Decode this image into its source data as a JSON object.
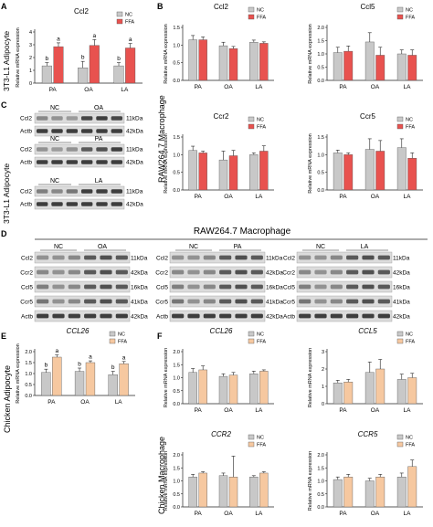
{
  "colors": {
    "nc": "#c8c8c8",
    "ffa": "#e8524f",
    "ffa_chicken": "#f6c8a0",
    "axis": "#222222",
    "blot_bg": "#dcdcdc",
    "band": "#222222"
  },
  "panels": {
    "A": "A",
    "B": "B",
    "C": "C",
    "D": "D",
    "E": "E",
    "F": "F"
  },
  "row_labels": {
    "adipocyte_3t3": "3T3-L1 Adipocyte",
    "raw_macrophage": "RAW264.7 Macrophage",
    "chicken_adipocyte": "Chicken Adipocyte",
    "chicken_macrophage": "Chicken Macrophage"
  },
  "blot_c": {
    "groups": [
      {
        "header": [
          "NC",
          "OA"
        ],
        "rows": [
          {
            "label": "Ccl2",
            "kda": "11kDa"
          },
          {
            "label": "Actb",
            "kda": "42kDa"
          }
        ]
      },
      {
        "header": [
          "NC",
          "PA"
        ],
        "rows": [
          {
            "label": "Ccl2",
            "kda": "11kDa"
          },
          {
            "label": "Actb",
            "kda": "42kDa"
          }
        ]
      },
      {
        "header": [
          "NC",
          "LA"
        ],
        "rows": [
          {
            "label": "Ccl2",
            "kda": "11kDa"
          },
          {
            "label": "Actb",
            "kda": "42kDa"
          }
        ]
      }
    ]
  },
  "blot_d": {
    "title": "RAW264.7 Macrophage",
    "groups": [
      {
        "header": [
          "NC",
          "OA"
        ]
      },
      {
        "header": [
          "NC",
          "PA"
        ]
      },
      {
        "header": [
          "NC",
          "LA"
        ]
      }
    ],
    "rows": [
      {
        "label": "Ccl2",
        "kda": "11kDa"
      },
      {
        "label": "Ccr2",
        "kda": "42kDa"
      },
      {
        "label": "Ccl5",
        "kda": "16kDa"
      },
      {
        "label": "Ccr5",
        "kda": "41kDa"
      },
      {
        "label": "Actb",
        "kda": "42kDa"
      }
    ]
  },
  "chart_data": [
    {
      "id": "A",
      "type": "bar",
      "title": "Ccl2",
      "title_italic": false,
      "ylabel": "Relative mRNA expression",
      "ylim": [
        0,
        4
      ],
      "yticks": [
        0,
        1,
        2,
        3,
        4
      ],
      "categories": [
        "PA",
        "OA",
        "LA"
      ],
      "series": [
        {
          "name": "NC",
          "values": [
            1.35,
            1.2,
            1.35
          ],
          "errors": [
            0.25,
            0.5,
            0.25
          ],
          "sig": [
            "b",
            "b",
            "b"
          ]
        },
        {
          "name": "FFA",
          "values": [
            2.85,
            2.95,
            2.75
          ],
          "errors": [
            0.3,
            0.45,
            0.35
          ],
          "sig": [
            "a",
            "a",
            "a"
          ]
        }
      ],
      "legend": "top-right"
    },
    {
      "id": "B1",
      "type": "bar",
      "title": "Ccl2",
      "title_italic": false,
      "ylabel": "Relative mRNA expression",
      "ylim": [
        0,
        1.5
      ],
      "yticks": [
        0.0,
        0.5,
        1.0,
        1.5
      ],
      "categories": [
        "PA",
        "OA",
        "LA"
      ],
      "series": [
        {
          "name": "NC",
          "values": [
            1.15,
            0.98,
            1.08
          ],
          "errors": [
            0.12,
            0.1,
            0.06
          ]
        },
        {
          "name": "FFA",
          "values": [
            1.15,
            0.9,
            1.05
          ],
          "errors": [
            0.08,
            0.06,
            0.04
          ]
        }
      ],
      "legend": "top-right"
    },
    {
      "id": "B2",
      "type": "bar",
      "title": "Ccl5",
      "title_italic": false,
      "ylabel": "Relative mRNA expression",
      "ylim": [
        0,
        2.0
      ],
      "yticks": [
        0.0,
        0.5,
        1.0,
        1.5,
        2.0
      ],
      "categories": [
        "PA",
        "OA",
        "LA"
      ],
      "series": [
        {
          "name": "NC",
          "values": [
            1.05,
            1.45,
            1.0
          ],
          "errors": [
            0.2,
            0.35,
            0.15
          ]
        },
        {
          "name": "FFA",
          "values": [
            1.1,
            0.95,
            0.95
          ],
          "errors": [
            0.2,
            0.3,
            0.2
          ]
        }
      ],
      "legend": "top-right"
    },
    {
      "id": "B3",
      "type": "bar",
      "title": "Ccr2",
      "title_italic": false,
      "ylabel": "Relative mRNA expression",
      "ylim": [
        0,
        1.5
      ],
      "yticks": [
        0.0,
        0.5,
        1.0,
        1.5
      ],
      "categories": [
        "PA",
        "OA",
        "LA"
      ],
      "series": [
        {
          "name": "NC",
          "values": [
            1.12,
            0.85,
            1.0
          ],
          "errors": [
            0.12,
            0.25,
            0.05
          ]
        },
        {
          "name": "FFA",
          "values": [
            1.05,
            0.97,
            1.1
          ],
          "errors": [
            0.05,
            0.15,
            0.15
          ]
        }
      ],
      "legend": "top-right"
    },
    {
      "id": "B4",
      "type": "bar",
      "title": "Ccr5",
      "title_italic": false,
      "ylabel": "Relative mRNA expression",
      "ylim": [
        0,
        1.5
      ],
      "yticks": [
        0.0,
        0.5,
        1.0,
        1.5
      ],
      "categories": [
        "PA",
        "OA",
        "LA"
      ],
      "series": [
        {
          "name": "NC",
          "values": [
            1.05,
            1.15,
            1.2
          ],
          "errors": [
            0.08,
            0.3,
            0.25
          ]
        },
        {
          "name": "FFA",
          "values": [
            1.0,
            1.1,
            0.9
          ],
          "errors": [
            0.05,
            0.3,
            0.15
          ]
        }
      ],
      "legend": "top-right"
    },
    {
      "id": "E",
      "type": "bar",
      "title": "CCL26",
      "title_italic": true,
      "ylabel": "Relative mRNA expression",
      "ylim": [
        0,
        2.0
      ],
      "yticks": [
        0.0,
        0.5,
        1.0,
        1.5,
        2.0
      ],
      "categories": [
        "PA",
        "OA",
        "LA"
      ],
      "series": [
        {
          "name": "NC",
          "values": [
            1.05,
            1.1,
            0.95
          ],
          "errors": [
            0.15,
            0.15,
            0.15
          ],
          "sig": [
            "b",
            "b",
            "b"
          ]
        },
        {
          "name": "FFA",
          "values": [
            1.75,
            1.5,
            1.45
          ],
          "errors": [
            0.1,
            0.08,
            0.1
          ],
          "sig": [
            "a",
            "a",
            "a"
          ]
        }
      ],
      "legend": "top-right"
    },
    {
      "id": "F1",
      "type": "bar",
      "title": "CCL26",
      "title_italic": true,
      "ylabel": "Relative mRNA expression",
      "ylim": [
        0,
        2.0
      ],
      "yticks": [
        0.0,
        0.5,
        1.0,
        1.5,
        2.0
      ],
      "categories": [
        "PA",
        "OA",
        "LA"
      ],
      "series": [
        {
          "name": "NC",
          "values": [
            1.2,
            1.05,
            1.15
          ],
          "errors": [
            0.15,
            0.1,
            0.1
          ]
        },
        {
          "name": "FFA",
          "values": [
            1.3,
            1.1,
            1.25
          ],
          "errors": [
            0.15,
            0.1,
            0.05
          ]
        }
      ],
      "legend": "top-right"
    },
    {
      "id": "F2",
      "type": "bar",
      "title": "CCL5",
      "title_italic": true,
      "ylabel": "Relative mRNA expression",
      "ylim": [
        0,
        3
      ],
      "yticks": [
        0,
        1,
        2,
        3
      ],
      "categories": [
        "PA",
        "OA",
        "LA"
      ],
      "series": [
        {
          "name": "NC",
          "values": [
            1.2,
            1.8,
            1.4
          ],
          "errors": [
            0.15,
            0.6,
            0.3
          ]
        },
        {
          "name": "FFA",
          "values": [
            1.25,
            2.0,
            1.5
          ],
          "errors": [
            0.15,
            0.55,
            0.25
          ]
        }
      ],
      "legend": "top-right"
    },
    {
      "id": "F3",
      "type": "bar",
      "title": "CCR2",
      "title_italic": true,
      "ylabel": "Relative mRNA expression",
      "ylim": [
        0,
        2.0
      ],
      "yticks": [
        0.0,
        0.5,
        1.0,
        1.5,
        2.0
      ],
      "categories": [
        "PA",
        "OA",
        "LA"
      ],
      "series": [
        {
          "name": "NC",
          "values": [
            1.15,
            1.2,
            1.15
          ],
          "errors": [
            0.1,
            0.1,
            0.05
          ]
        },
        {
          "name": "FFA",
          "values": [
            1.3,
            1.15,
            1.3
          ],
          "errors": [
            0.05,
            0.8,
            0.05
          ]
        }
      ],
      "legend": "top-right"
    },
    {
      "id": "F4",
      "type": "bar",
      "title": "CCR5",
      "title_italic": true,
      "ylabel": "Relative mRNA expression",
      "ylim": [
        0,
        2.0
      ],
      "yticks": [
        0.0,
        0.5,
        1.0,
        1.5,
        2.0
      ],
      "categories": [
        "PA",
        "OA",
        "LA"
      ],
      "series": [
        {
          "name": "NC",
          "values": [
            1.05,
            1.0,
            1.15
          ],
          "errors": [
            0.1,
            0.1,
            0.15
          ]
        },
        {
          "name": "FFA",
          "values": [
            1.15,
            1.15,
            1.55
          ],
          "errors": [
            0.1,
            0.1,
            0.25
          ]
        }
      ],
      "legend": "top-right"
    }
  ]
}
